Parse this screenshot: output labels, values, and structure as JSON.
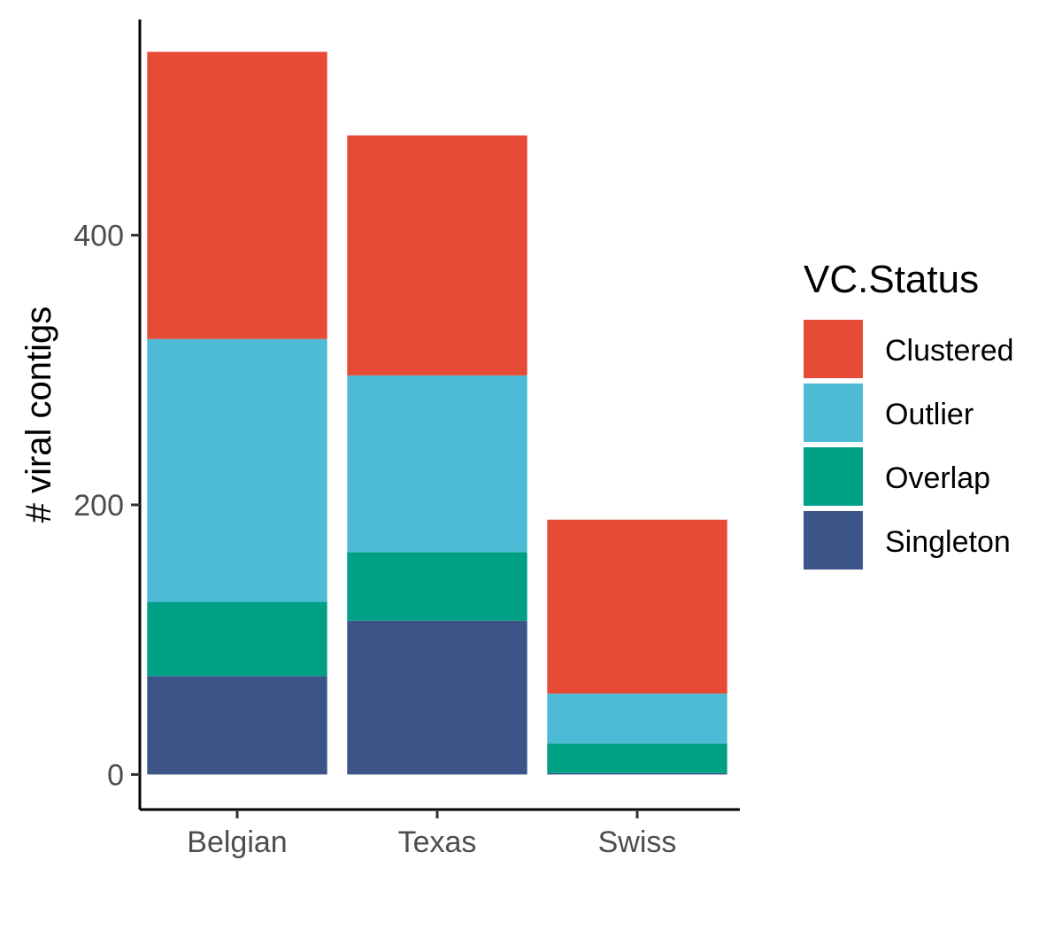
{
  "chart_data": {
    "type": "bar",
    "stacked": true,
    "categories": [
      "Belgian",
      "Texas",
      "Swiss"
    ],
    "series": [
      {
        "name": "Singleton",
        "color": "#3C5488",
        "values": [
          73,
          114,
          1
        ]
      },
      {
        "name": "Overlap",
        "color": "#00A087",
        "values": [
          55,
          51,
          22
        ]
      },
      {
        "name": "Outlier",
        "color": "#4DBBD5",
        "values": [
          195,
          131,
          37
        ]
      },
      {
        "name": "Clustered",
        "color": "#E64B35",
        "values": [
          213,
          178,
          129
        ]
      }
    ],
    "xlabel": "",
    "ylabel": "# viral contigs",
    "yticks": [
      0,
      200,
      400
    ],
    "ylim": [
      -26,
      560
    ],
    "legend": {
      "title": "VC.Status",
      "position": "right",
      "order": [
        "Clustered",
        "Outlier",
        "Overlap",
        "Singleton"
      ]
    },
    "grid": false
  }
}
